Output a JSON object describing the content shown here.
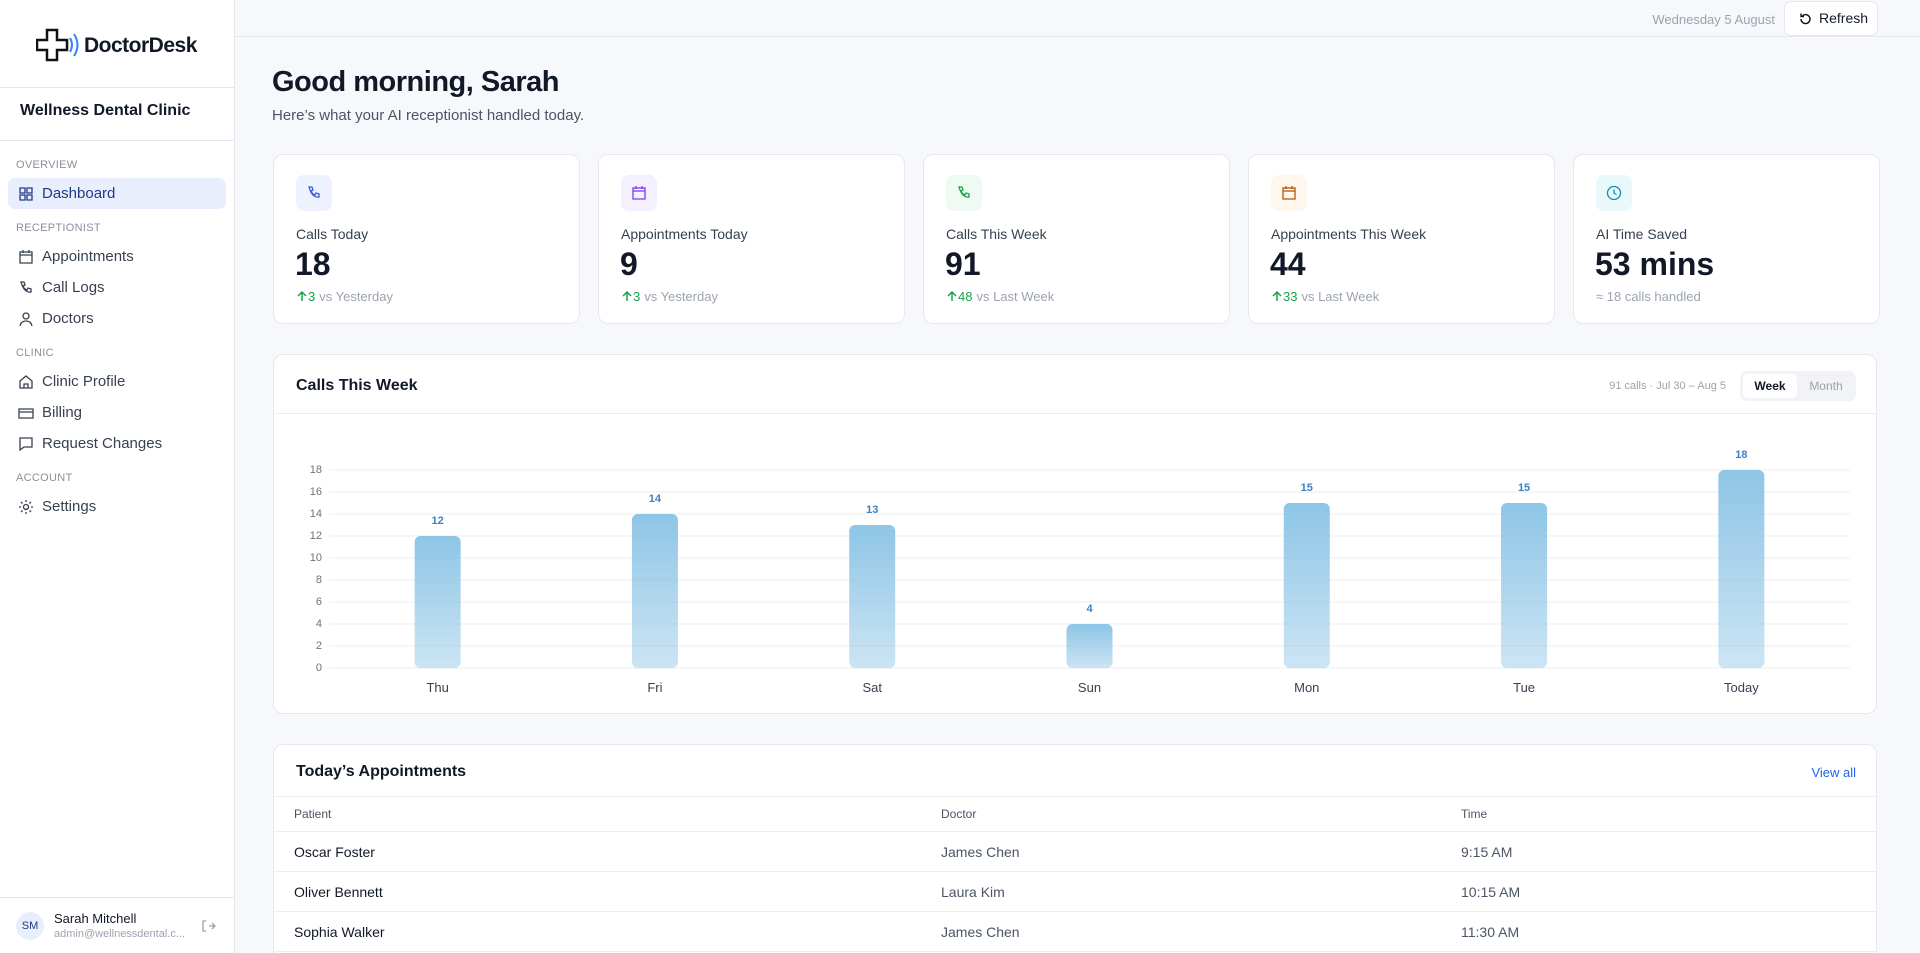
{
  "sidebar": {
    "brand": "DoctorDesk",
    "clinic": "Wellness Dental Clinic",
    "sections": [
      {
        "label": "OVERVIEW",
        "items": [
          "Dashboard"
        ]
      },
      {
        "label": "RECEPTIONIST",
        "items": [
          "Appointments",
          "Call Logs",
          "Doctors"
        ]
      },
      {
        "label": "CLINIC",
        "items": [
          "Clinic Profile",
          "Billing",
          "Request Changes"
        ]
      },
      {
        "label": "ACCOUNT",
        "items": [
          "Settings"
        ]
      }
    ],
    "user": {
      "initials": "SM",
      "name": "Sarah Mitchell",
      "email": "admin@wellnessdental.c..."
    }
  },
  "topbar": {
    "date": "Wednesday 5 August",
    "refresh": "Refresh"
  },
  "header": {
    "title": "Good morning, Sarah",
    "subtitle": "Here’s what your AI receptionist handled today."
  },
  "stats": [
    {
      "label": "Calls Today",
      "value": 18,
      "delta": 3,
      "note": "vs Yesterday"
    },
    {
      "label": "Appointments Today",
      "value": 9,
      "delta": 3,
      "note": "vs Yesterday"
    },
    {
      "label": "Calls This Week",
      "value": 91,
      "delta": 48,
      "note": "vs Last Week"
    },
    {
      "label": "Appointments This Week",
      "value": 44,
      "delta": 33,
      "note": "vs Last Week"
    },
    {
      "label": "AI Time Saved",
      "value": "53 mins",
      "note": "≈ 18 calls handled"
    }
  ],
  "chart_data": {
    "type": "bar",
    "title": "Calls This Week",
    "summary": "91 calls · Jul 30 – Aug 5",
    "periods": [
      "Week",
      "Month"
    ],
    "categories": [
      "Thu",
      "Fri",
      "Sat",
      "Sun",
      "Mon",
      "Tue",
      "Today"
    ],
    "values": [
      12,
      14,
      13,
      4,
      15,
      15,
      18
    ],
    "color": "#8ec5e6",
    "ylim": [
      0,
      18
    ],
    "yticks": [
      0,
      2,
      4,
      6,
      8,
      10,
      12,
      14,
      16,
      18
    ],
    "grid": true
  },
  "appointments": {
    "title": "Today’s Appointments",
    "link": "View all",
    "columns": [
      "Patient",
      "Doctor",
      "Time"
    ],
    "rows": [
      [
        "Oscar Foster",
        "James Chen",
        "9:15 AM"
      ],
      [
        "Oliver Bennett",
        "Laura Kim",
        "10:15 AM"
      ],
      [
        "Sophia Walker",
        "James Chen",
        "11:30 AM"
      ]
    ]
  }
}
